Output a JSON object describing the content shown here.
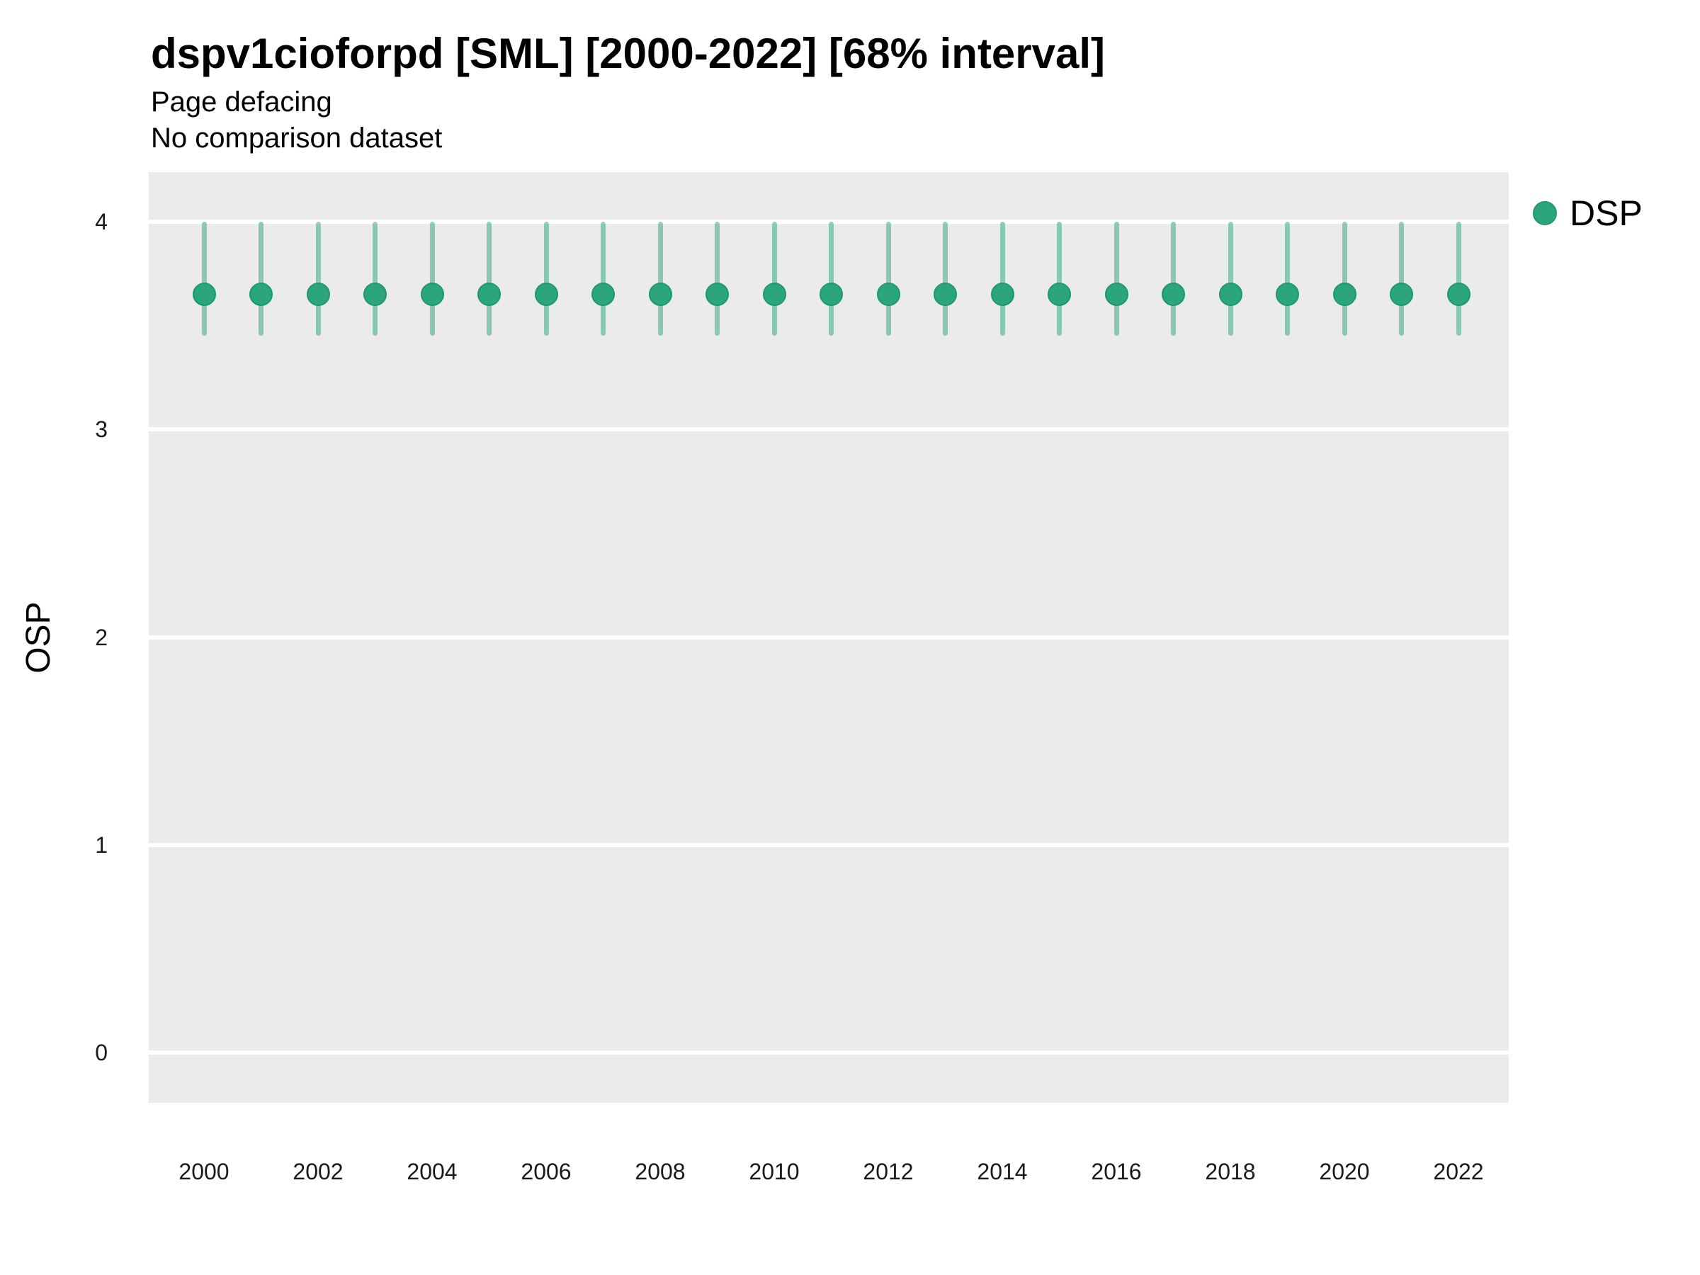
{
  "title": "dspv1cioforpd [SML] [2000-2022] [68% interval]",
  "subtitle_line1": "Page defacing",
  "subtitle_line2": "No comparison dataset",
  "legend": {
    "position": "right",
    "items": [
      {
        "label": "DSP",
        "marker": "circle-icon"
      }
    ]
  },
  "colors": {
    "point": "#2aa57e",
    "point_border": "#1f9770",
    "interval": "rgba(42,165,126,0.5)",
    "panel_background": "#ebebeb",
    "gridline": "#ffffff",
    "title_text": "#000000",
    "axis_text": "#1a1a1a"
  },
  "chart_data": {
    "type": "scatter",
    "subtype": "point-interval",
    "title": "dspv1cioforpd [SML] [2000-2022] [68% interval]",
    "subtitle": "Page defacing / No comparison dataset",
    "interval_level": "68%",
    "xlabel": "",
    "ylabel": "OSP",
    "x": [
      2000,
      2001,
      2002,
      2003,
      2004,
      2005,
      2006,
      2007,
      2008,
      2009,
      2010,
      2011,
      2012,
      2013,
      2014,
      2015,
      2016,
      2017,
      2018,
      2019,
      2020,
      2021,
      2022
    ],
    "series": [
      {
        "name": "DSP",
        "values": [
          3.65,
          3.65,
          3.65,
          3.65,
          3.65,
          3.65,
          3.65,
          3.65,
          3.65,
          3.65,
          3.65,
          3.65,
          3.65,
          3.65,
          3.65,
          3.65,
          3.65,
          3.65,
          3.65,
          3.65,
          3.65,
          3.65,
          3.65
        ],
        "interval_low": [
          3.45,
          3.45,
          3.45,
          3.45,
          3.45,
          3.45,
          3.45,
          3.45,
          3.45,
          3.45,
          3.45,
          3.45,
          3.45,
          3.45,
          3.45,
          3.45,
          3.45,
          3.45,
          3.45,
          3.45,
          3.45,
          3.45,
          3.45
        ],
        "interval_high": [
          4.0,
          4.0,
          4.0,
          4.0,
          4.0,
          4.0,
          4.0,
          4.0,
          4.0,
          4.0,
          4.0,
          4.0,
          4.0,
          4.0,
          4.0,
          4.0,
          4.0,
          4.0,
          4.0,
          4.0,
          4.0,
          4.0,
          4.0
        ]
      }
    ],
    "x_ticks": [
      2000,
      2002,
      2004,
      2006,
      2008,
      2010,
      2012,
      2014,
      2016,
      2018,
      2020,
      2022
    ],
    "y_ticks": [
      0,
      1,
      2,
      3,
      4
    ],
    "ylim": [
      -0.24,
      4.24
    ],
    "grid": "major-horizontal-white-on-gray",
    "legend_position": "right-top"
  }
}
